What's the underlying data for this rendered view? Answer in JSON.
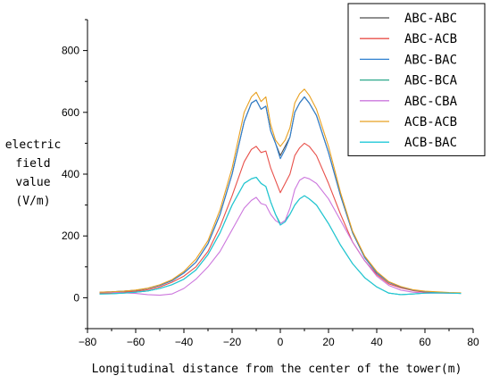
{
  "chart_data": {
    "type": "line",
    "title": "",
    "xlabel": "Longitudinal distance from the center of the tower(m)",
    "ylabel_lines": [
      "electric",
      "field",
      "value",
      "(V/m)"
    ],
    "xlim": [
      -80,
      80
    ],
    "ylim": [
      -100,
      900
    ],
    "xticks": [
      -80,
      -60,
      -40,
      -20,
      0,
      20,
      40,
      60,
      80
    ],
    "yticks": [
      0,
      200,
      400,
      600,
      800
    ],
    "grid": false,
    "legend_position": "top-right",
    "x": [
      -75,
      -70,
      -65,
      -60,
      -55,
      -50,
      -45,
      -40,
      -35,
      -30,
      -25,
      -20,
      -15,
      -12,
      -10,
      -8,
      -6,
      -4,
      -2,
      0,
      2,
      4,
      6,
      8,
      10,
      12,
      15,
      20,
      25,
      30,
      35,
      40,
      45,
      50,
      55,
      60,
      65,
      70,
      75
    ],
    "series": [
      {
        "name": "ABC-ABC",
        "color": "#4d4d4d",
        "values": [
          18,
          19,
          21,
          24,
          30,
          40,
          55,
          80,
          115,
          175,
          270,
          400,
          570,
          630,
          640,
          610,
          620,
          540,
          500,
          460,
          490,
          520,
          600,
          630,
          650,
          630,
          590,
          470,
          330,
          210,
          130,
          80,
          50,
          35,
          25,
          20,
          18,
          16,
          15
        ]
      },
      {
        "name": "ABC-ACB",
        "color": "#e8504a",
        "values": [
          15,
          16,
          18,
          21,
          26,
          35,
          50,
          70,
          100,
          150,
          230,
          330,
          440,
          480,
          490,
          470,
          475,
          420,
          380,
          340,
          370,
          400,
          460,
          485,
          500,
          490,
          460,
          370,
          270,
          180,
          120,
          75,
          45,
          32,
          23,
          18,
          16,
          15,
          14
        ]
      },
      {
        "name": "ABC-BAC",
        "color": "#2f80d0",
        "values": [
          18,
          19,
          21,
          24,
          30,
          40,
          55,
          80,
          115,
          175,
          270,
          400,
          570,
          630,
          640,
          610,
          620,
          540,
          500,
          450,
          480,
          520,
          600,
          630,
          650,
          630,
          590,
          470,
          330,
          210,
          130,
          80,
          50,
          35,
          25,
          20,
          18,
          16,
          15
        ]
      },
      {
        "name": "ABC-BCA",
        "color": "#2ca88a",
        "values": [
          12,
          13,
          15,
          18,
          22,
          30,
          42,
          60,
          90,
          140,
          210,
          300,
          370,
          385,
          390,
          370,
          360,
          310,
          270,
          240,
          250,
          270,
          300,
          320,
          330,
          320,
          300,
          240,
          170,
          110,
          65,
          35,
          15,
          10,
          12,
          15,
          16,
          15,
          14
        ]
      },
      {
        "name": "ABC-CBA",
        "color": "#cc77dd",
        "values": [
          18,
          17,
          16,
          14,
          10,
          8,
          12,
          30,
          60,
          100,
          150,
          220,
          290,
          315,
          325,
          305,
          300,
          270,
          250,
          240,
          250,
          290,
          350,
          380,
          390,
          385,
          370,
          320,
          250,
          180,
          120,
          70,
          40,
          25,
          18,
          15,
          15,
          15,
          15
        ]
      },
      {
        "name": "ACB-ACB",
        "color": "#e8a020",
        "values": [
          18,
          19,
          21,
          25,
          31,
          42,
          58,
          85,
          125,
          185,
          285,
          420,
          600,
          650,
          665,
          635,
          650,
          560,
          510,
          490,
          510,
          550,
          630,
          660,
          675,
          655,
          610,
          490,
          340,
          215,
          135,
          85,
          52,
          36,
          26,
          21,
          19,
          17,
          16
        ]
      },
      {
        "name": "ACB-BAC",
        "color": "#20c8d8",
        "values": [
          12,
          13,
          15,
          18,
          22,
          30,
          42,
          60,
          90,
          140,
          210,
          300,
          370,
          385,
          390,
          370,
          360,
          310,
          270,
          235,
          245,
          270,
          300,
          320,
          330,
          320,
          300,
          240,
          170,
          110,
          65,
          35,
          15,
          10,
          12,
          15,
          16,
          15,
          14
        ]
      }
    ]
  }
}
